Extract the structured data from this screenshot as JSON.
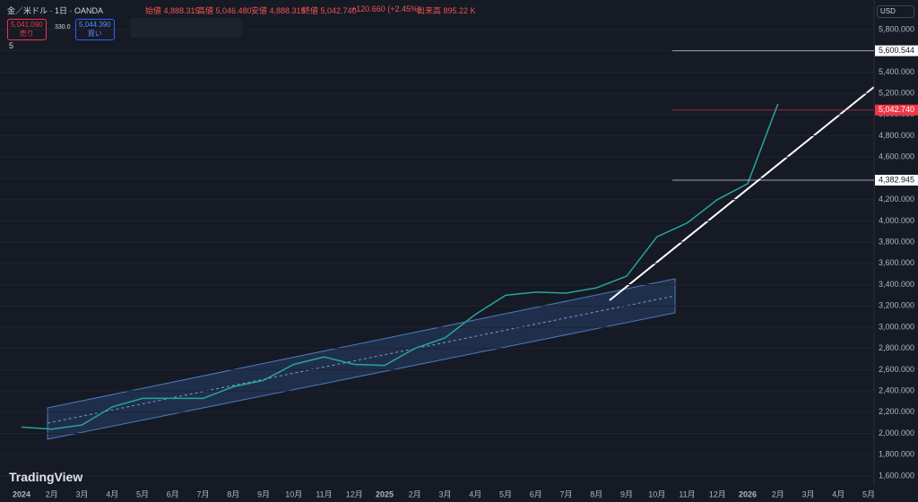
{
  "header": {
    "symbol": "金／米ドル · 1日 · OANDA",
    "open": "始値 4,888.315",
    "high": "高値 5,046.480",
    "low": "安値 4,888.315",
    "close": "終値 5,042.740",
    "change": "+120.660 (+2.45%)",
    "volume": "出来高 895.22 K",
    "sell_price": "5,041.090",
    "sell_label": "売り",
    "spread": "330.0",
    "buy_price": "5,044.390",
    "buy_label": "買い",
    "indicator_count": "5",
    "currency": "USD",
    "brand": "TradingView"
  },
  "chart_data": {
    "type": "line",
    "color": "#26a69a",
    "categories": [
      "2024",
      "2月",
      "3月",
      "4月",
      "5月",
      "6月",
      "7月",
      "8月",
      "9月",
      "10月",
      "11月",
      "12月",
      "2025",
      "2月",
      "3月",
      "4月",
      "5月",
      "6月",
      "7月",
      "8月",
      "9月",
      "10月",
      "11月",
      "12月",
      "2026",
      "2月",
      "3月",
      "4月",
      "5月"
    ],
    "series": [
      {
        "name": "XAUUSD",
        "color": "#26a69a",
        "values": [
          2060,
          2040,
          2080,
          2250,
          2330,
          2330,
          2330,
          2440,
          2500,
          2650,
          2720,
          2650,
          2640,
          2800,
          2900,
          3120,
          3300,
          3330,
          3320,
          3370,
          3480,
          3850,
          3980,
          4200,
          4350,
          5100,
          null,
          null,
          null
        ]
      }
    ],
    "ylim": [
      1507,
      6078
    ],
    "yticks": [
      {
        "value": 1600,
        "label": "1,600.000"
      },
      {
        "value": 1800,
        "label": "1,800.000"
      },
      {
        "value": 2000,
        "label": "2,000.000"
      },
      {
        "value": 2200,
        "label": "2,200.000"
      },
      {
        "value": 2400,
        "label": "2,400.000"
      },
      {
        "value": 2600,
        "label": "2,600.000"
      },
      {
        "value": 2800,
        "label": "2,800.000"
      },
      {
        "value": 3000,
        "label": "3,000.000"
      },
      {
        "value": 3200,
        "label": "3,200.000"
      },
      {
        "value": 3400,
        "label": "3,400.000"
      },
      {
        "value": 3600,
        "label": "3,600.000"
      },
      {
        "value": 3800,
        "label": "3,800.000"
      },
      {
        "value": 4000,
        "label": "4,000.000"
      },
      {
        "value": 4200,
        "label": "4,200.000"
      },
      {
        "value": 4400,
        "label": "4,400.000"
      },
      {
        "value": 4600,
        "label": "4,600.000"
      },
      {
        "value": 4800,
        "label": "4,800.000"
      },
      {
        "value": 5000,
        "label": "5,000.000"
      },
      {
        "value": 5200,
        "label": "5,200.000"
      },
      {
        "value": 5400,
        "label": "5,400.000"
      },
      {
        "value": 5600,
        "label": "5,600.000"
      },
      {
        "value": 5800,
        "label": "5,800.000"
      }
    ],
    "levels": [
      {
        "value": 5600.544,
        "label": "5,600.544",
        "color": "#ffffff"
      },
      {
        "value": 5042.74,
        "label": "5,042.740",
        "color": "#f23645"
      },
      {
        "value": 4382.945,
        "label": "4,382.945",
        "color": "#ffffff"
      }
    ],
    "grid": true
  }
}
